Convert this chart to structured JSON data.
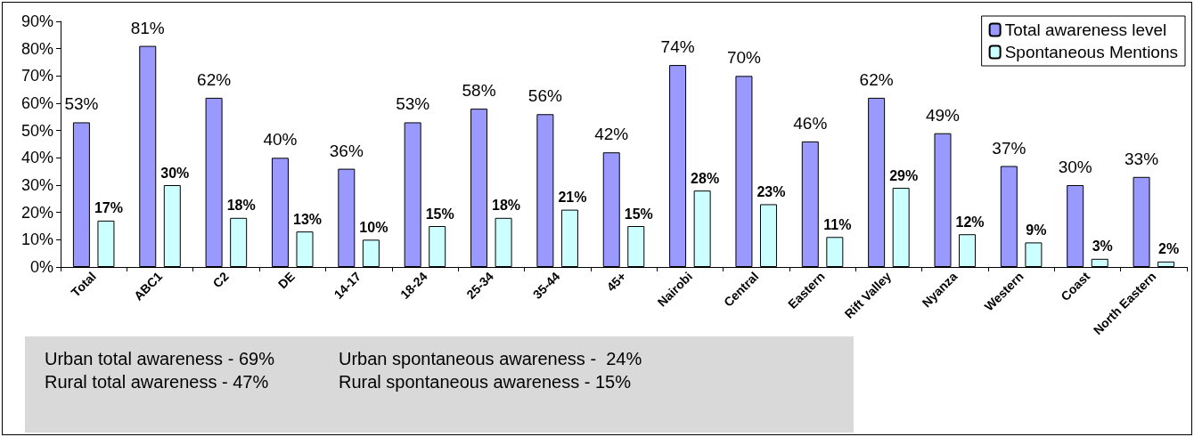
{
  "chart_data": {
    "type": "bar",
    "categories": [
      "Total",
      "ABC1",
      "C2",
      "DE",
      "14-17",
      "18-24",
      "25-34",
      "35-44",
      "45+",
      "Nairobi",
      "Central",
      "Eastern",
      "Rift Valley",
      "Nyanza",
      "Western",
      "Coast",
      "North Eastern"
    ],
    "series": [
      {
        "name": "Total awareness level",
        "color": "#9999ff",
        "values": [
          53,
          81,
          62,
          40,
          36,
          53,
          58,
          56,
          42,
          74,
          70,
          46,
          62,
          49,
          37,
          30,
          33
        ],
        "value_labels": [
          "53%",
          "81%",
          "62%",
          "40%",
          "36%",
          "53%",
          "58%",
          "56%",
          "42%",
          "74%",
          "70%",
          "46%",
          "62%",
          "49%",
          "37%",
          "30%",
          "33%"
        ]
      },
      {
        "name": "Spontaneous Mentions",
        "color": "#ccffff",
        "values": [
          17,
          30,
          18,
          13,
          10,
          15,
          18,
          21,
          15,
          28,
          23,
          11,
          29,
          12,
          9,
          3,
          2
        ],
        "value_labels": [
          "17%",
          "30%",
          "18%",
          "13%",
          "10%",
          "15%",
          "18%",
          "21%",
          "15%",
          "28%",
          "23%",
          "11%",
          "29%",
          "12%",
          "9%",
          "3%",
          "2%"
        ]
      }
    ],
    "ylim": [
      0,
      90
    ],
    "yticks": [
      {
        "value": 0,
        "label": "0%"
      },
      {
        "value": 10,
        "label": "10%"
      },
      {
        "value": 20,
        "label": "20%"
      },
      {
        "value": 30,
        "label": "30%"
      },
      {
        "value": 40,
        "label": "40%"
      },
      {
        "value": 50,
        "label": "50%"
      },
      {
        "value": 60,
        "label": "60%"
      },
      {
        "value": 70,
        "label": "70%"
      },
      {
        "value": 80,
        "label": "80%"
      },
      {
        "value": 90,
        "label": "90%"
      }
    ],
    "grid": false,
    "legend": "top right",
    "annotations": [
      "Urban total awareness - 69%",
      "Urban spontaneous awareness -  24%",
      "Rural total awareness - 47%",
      "Rural spontaneous awareness - 15%"
    ]
  }
}
